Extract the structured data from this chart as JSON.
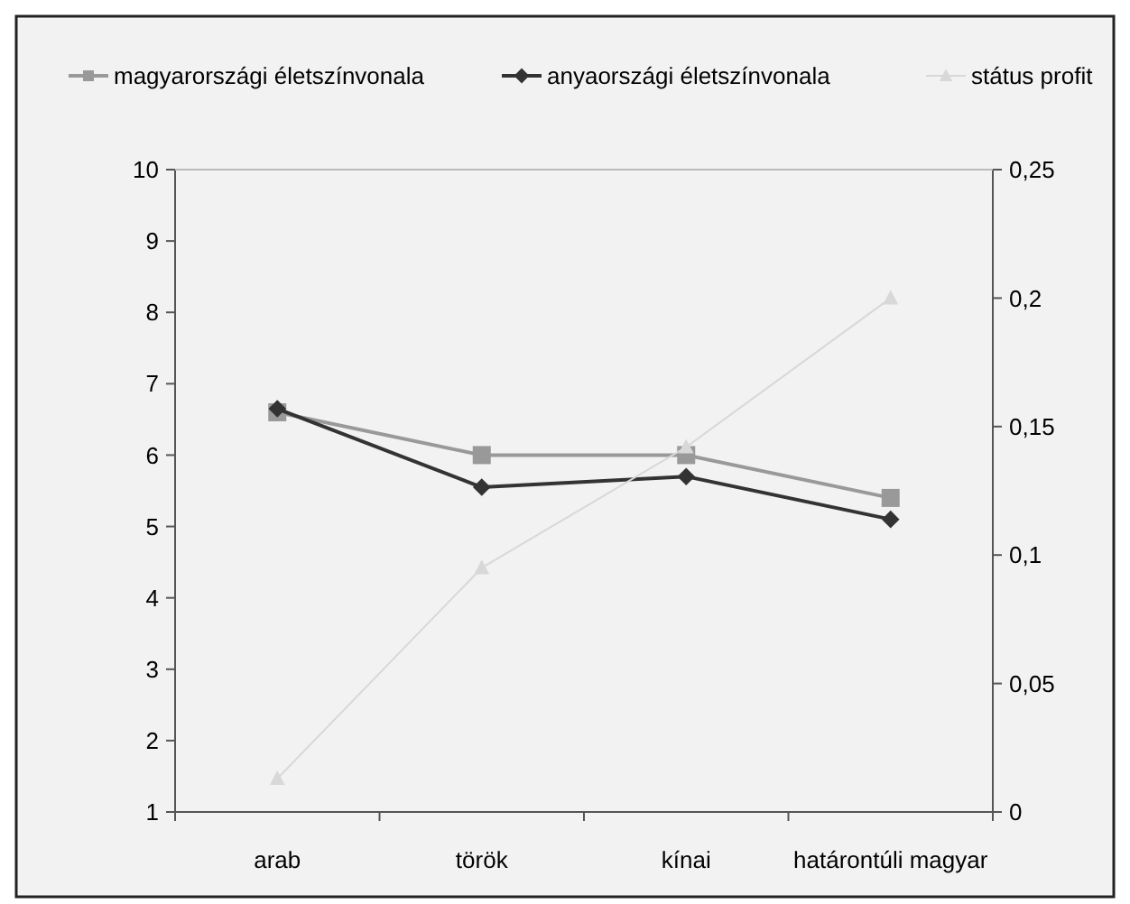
{
  "chart_data": {
    "type": "line",
    "categories": [
      "arab",
      "török",
      "kínai",
      "határontúli magyar"
    ],
    "series": [
      {
        "name": "magyarországi életszínvonala",
        "color": "#999999",
        "marker": "square",
        "values": [
          6.6,
          6.0,
          6.0,
          5.4
        ]
      },
      {
        "name": "anyaországi életszínvonala",
        "color": "#333333",
        "marker": "diamond",
        "values": [
          6.65,
          5.55,
          5.7,
          5.1
        ]
      },
      {
        "name": "státus profit",
        "color": "#d8d8d8",
        "marker": "triangle",
        "axis": "y2",
        "values": [
          0.013,
          0.095,
          0.142,
          0.2
        ]
      }
    ],
    "ylim": [
      1,
      10
    ],
    "yticks": [
      1,
      2,
      3,
      4,
      5,
      6,
      7,
      8,
      9,
      10
    ],
    "y2lim": [
      0,
      0.25
    ],
    "y2ticks": [
      {
        "value": 0,
        "label": "0"
      },
      {
        "value": 0.05,
        "label": "0,05"
      },
      {
        "value": 0.1,
        "label": "0,1"
      },
      {
        "value": 0.15,
        "label": "0,15"
      },
      {
        "value": 0.2,
        "label": "0,2"
      },
      {
        "value": 0.25,
        "label": "0,25"
      }
    ],
    "legend": "top",
    "grid": false
  }
}
